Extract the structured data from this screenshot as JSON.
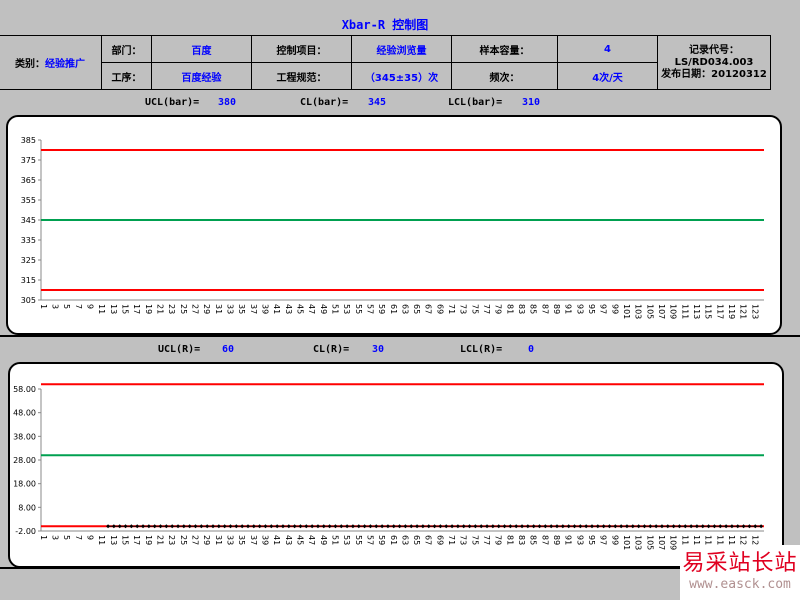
{
  "title": "Xbar-R 控制图",
  "header": {
    "category_label": "类别：",
    "category_value": "经验推广",
    "dept_label": "部门：",
    "dept_value": "百度",
    "control_item_label": "控制项目：",
    "control_item_value": "经验浏览量",
    "sample_size_label": "样本容量：",
    "sample_size_value": "4",
    "process_label": "工序：",
    "process_value": "百度经验",
    "spec_label": "工程规范：",
    "spec_value": "（345±35）次",
    "frequency_label": "频次：",
    "frequency_value": "4次/天",
    "record_code_label": "记录代号：",
    "record_code_value": "LS/RD034.003",
    "publish_date": "发布日期：20120312"
  },
  "xbar_limits": {
    "ucl_label": "UCL(bar)=",
    "ucl": "380",
    "cl_label": "CL(bar)=",
    "cl": "345",
    "lcl_label": "LCL(bar)=",
    "lcl": "310"
  },
  "r_limits": {
    "ucl_label": "UCL(R)=",
    "ucl": "60",
    "cl_label": "CL(R)=",
    "cl": "30",
    "lcl_label": "LCL(R)=",
    "lcl": "0"
  },
  "watermark": {
    "text": "易采站长站",
    "url": "www.easck.com"
  },
  "colors": {
    "limit": "#ff0000",
    "center": "#00a050",
    "data": "#000000",
    "label": "#0000ff"
  },
  "chart_data": [
    {
      "type": "line",
      "name": "xbar",
      "x_start": 1,
      "x_end": 124,
      "x_tick_step": 2,
      "ylim": [
        305,
        385
      ],
      "y_ticks": [
        305,
        315,
        325,
        335,
        345,
        355,
        365,
        375,
        385
      ],
      "y_tick_format": "int",
      "ucl": 380,
      "cl": 345,
      "lcl": 310,
      "values": []
    },
    {
      "type": "line",
      "name": "r",
      "x_start": 1,
      "x_end": 124,
      "x_tick_step": 2,
      "ylim": [
        -2,
        58
      ],
      "y_ticks": [
        -2,
        8,
        18,
        28,
        38,
        48,
        58
      ],
      "y_tick_format": "2dp",
      "ucl": 60,
      "cl": 30,
      "lcl": 0,
      "values": [
        null,
        null,
        null,
        null,
        null,
        null,
        null,
        null,
        null,
        null,
        null,
        0,
        0,
        0,
        0,
        0,
        0,
        0,
        0,
        0,
        0,
        0,
        0,
        0,
        0,
        0,
        0,
        0,
        0,
        0,
        0,
        0,
        0,
        0,
        0,
        0,
        0,
        0,
        0,
        0,
        0,
        0,
        0,
        0,
        0,
        0,
        0,
        0,
        0,
        0,
        0,
        0,
        0,
        0,
        0,
        0,
        0,
        0,
        0,
        0,
        0,
        0,
        0,
        0,
        0,
        0,
        0,
        0,
        0,
        0,
        0,
        0,
        0,
        0,
        0,
        0,
        0,
        0,
        0,
        0,
        0,
        0,
        0,
        0,
        0,
        0,
        0,
        0,
        0,
        0,
        0,
        0,
        0,
        0,
        0,
        0,
        0,
        0,
        0,
        0,
        0,
        0,
        0,
        0,
        0,
        0,
        0,
        0,
        0,
        0,
        0,
        0,
        0,
        0,
        0,
        0,
        0,
        0,
        0,
        0,
        0,
        0,
        0,
        0
      ]
    }
  ]
}
